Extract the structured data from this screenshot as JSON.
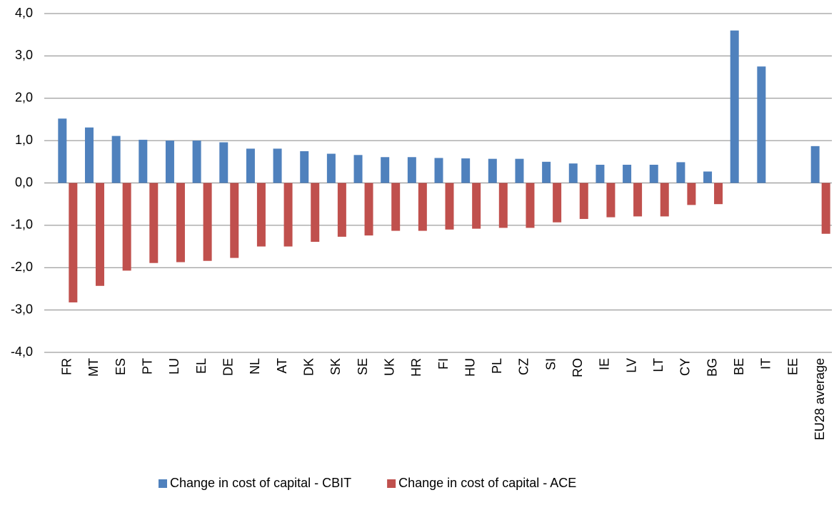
{
  "chart_data": {
    "type": "bar",
    "categories": [
      "FR",
      "MT",
      "ES",
      "PT",
      "LU",
      "EL",
      "DE",
      "NL",
      "AT",
      "DK",
      "SK",
      "SE",
      "UK",
      "HR",
      "FI",
      "HU",
      "PL",
      "CZ",
      "SI",
      "RO",
      "IE",
      "LV",
      "LT",
      "CY",
      "BG",
      "BE",
      "IT",
      "EE",
      "EU28 average"
    ],
    "series": [
      {
        "name": "Change in cost of capital - CBIT",
        "color": "#4f81bd",
        "values": [
          1.52,
          1.31,
          1.11,
          1.02,
          1.0,
          1.0,
          0.96,
          0.81,
          0.81,
          0.75,
          0.69,
          0.66,
          0.61,
          0.61,
          0.59,
          0.58,
          0.57,
          0.57,
          0.5,
          0.46,
          0.43,
          0.43,
          0.43,
          0.49,
          0.27,
          3.6,
          2.75,
          null,
          0.87
        ]
      },
      {
        "name": "Change in cost of capital - ACE",
        "color": "#c0504d",
        "values": [
          -2.82,
          -2.43,
          -2.07,
          -1.89,
          -1.87,
          -1.84,
          -1.77,
          -1.5,
          -1.5,
          -1.39,
          -1.27,
          -1.24,
          -1.13,
          -1.13,
          -1.1,
          -1.08,
          -1.06,
          -1.06,
          -0.93,
          -0.85,
          -0.81,
          -0.79,
          -0.79,
          -0.52,
          -0.5,
          null,
          null,
          null,
          -1.2
        ]
      }
    ],
    "ylim": [
      -4,
      4
    ],
    "yticks": [
      {
        "value": -4,
        "label": "-4,0"
      },
      {
        "value": -3,
        "label": "-3,0"
      },
      {
        "value": -2,
        "label": "-2,0"
      },
      {
        "value": -1,
        "label": "-1,0"
      },
      {
        "value": 0,
        "label": "0,0"
      },
      {
        "value": 1,
        "label": "1,0"
      },
      {
        "value": 2,
        "label": "2,0"
      },
      {
        "value": 3,
        "label": "3,0"
      },
      {
        "value": 4,
        "label": "4,0"
      }
    ],
    "grid": true,
    "legend": "bottom"
  }
}
